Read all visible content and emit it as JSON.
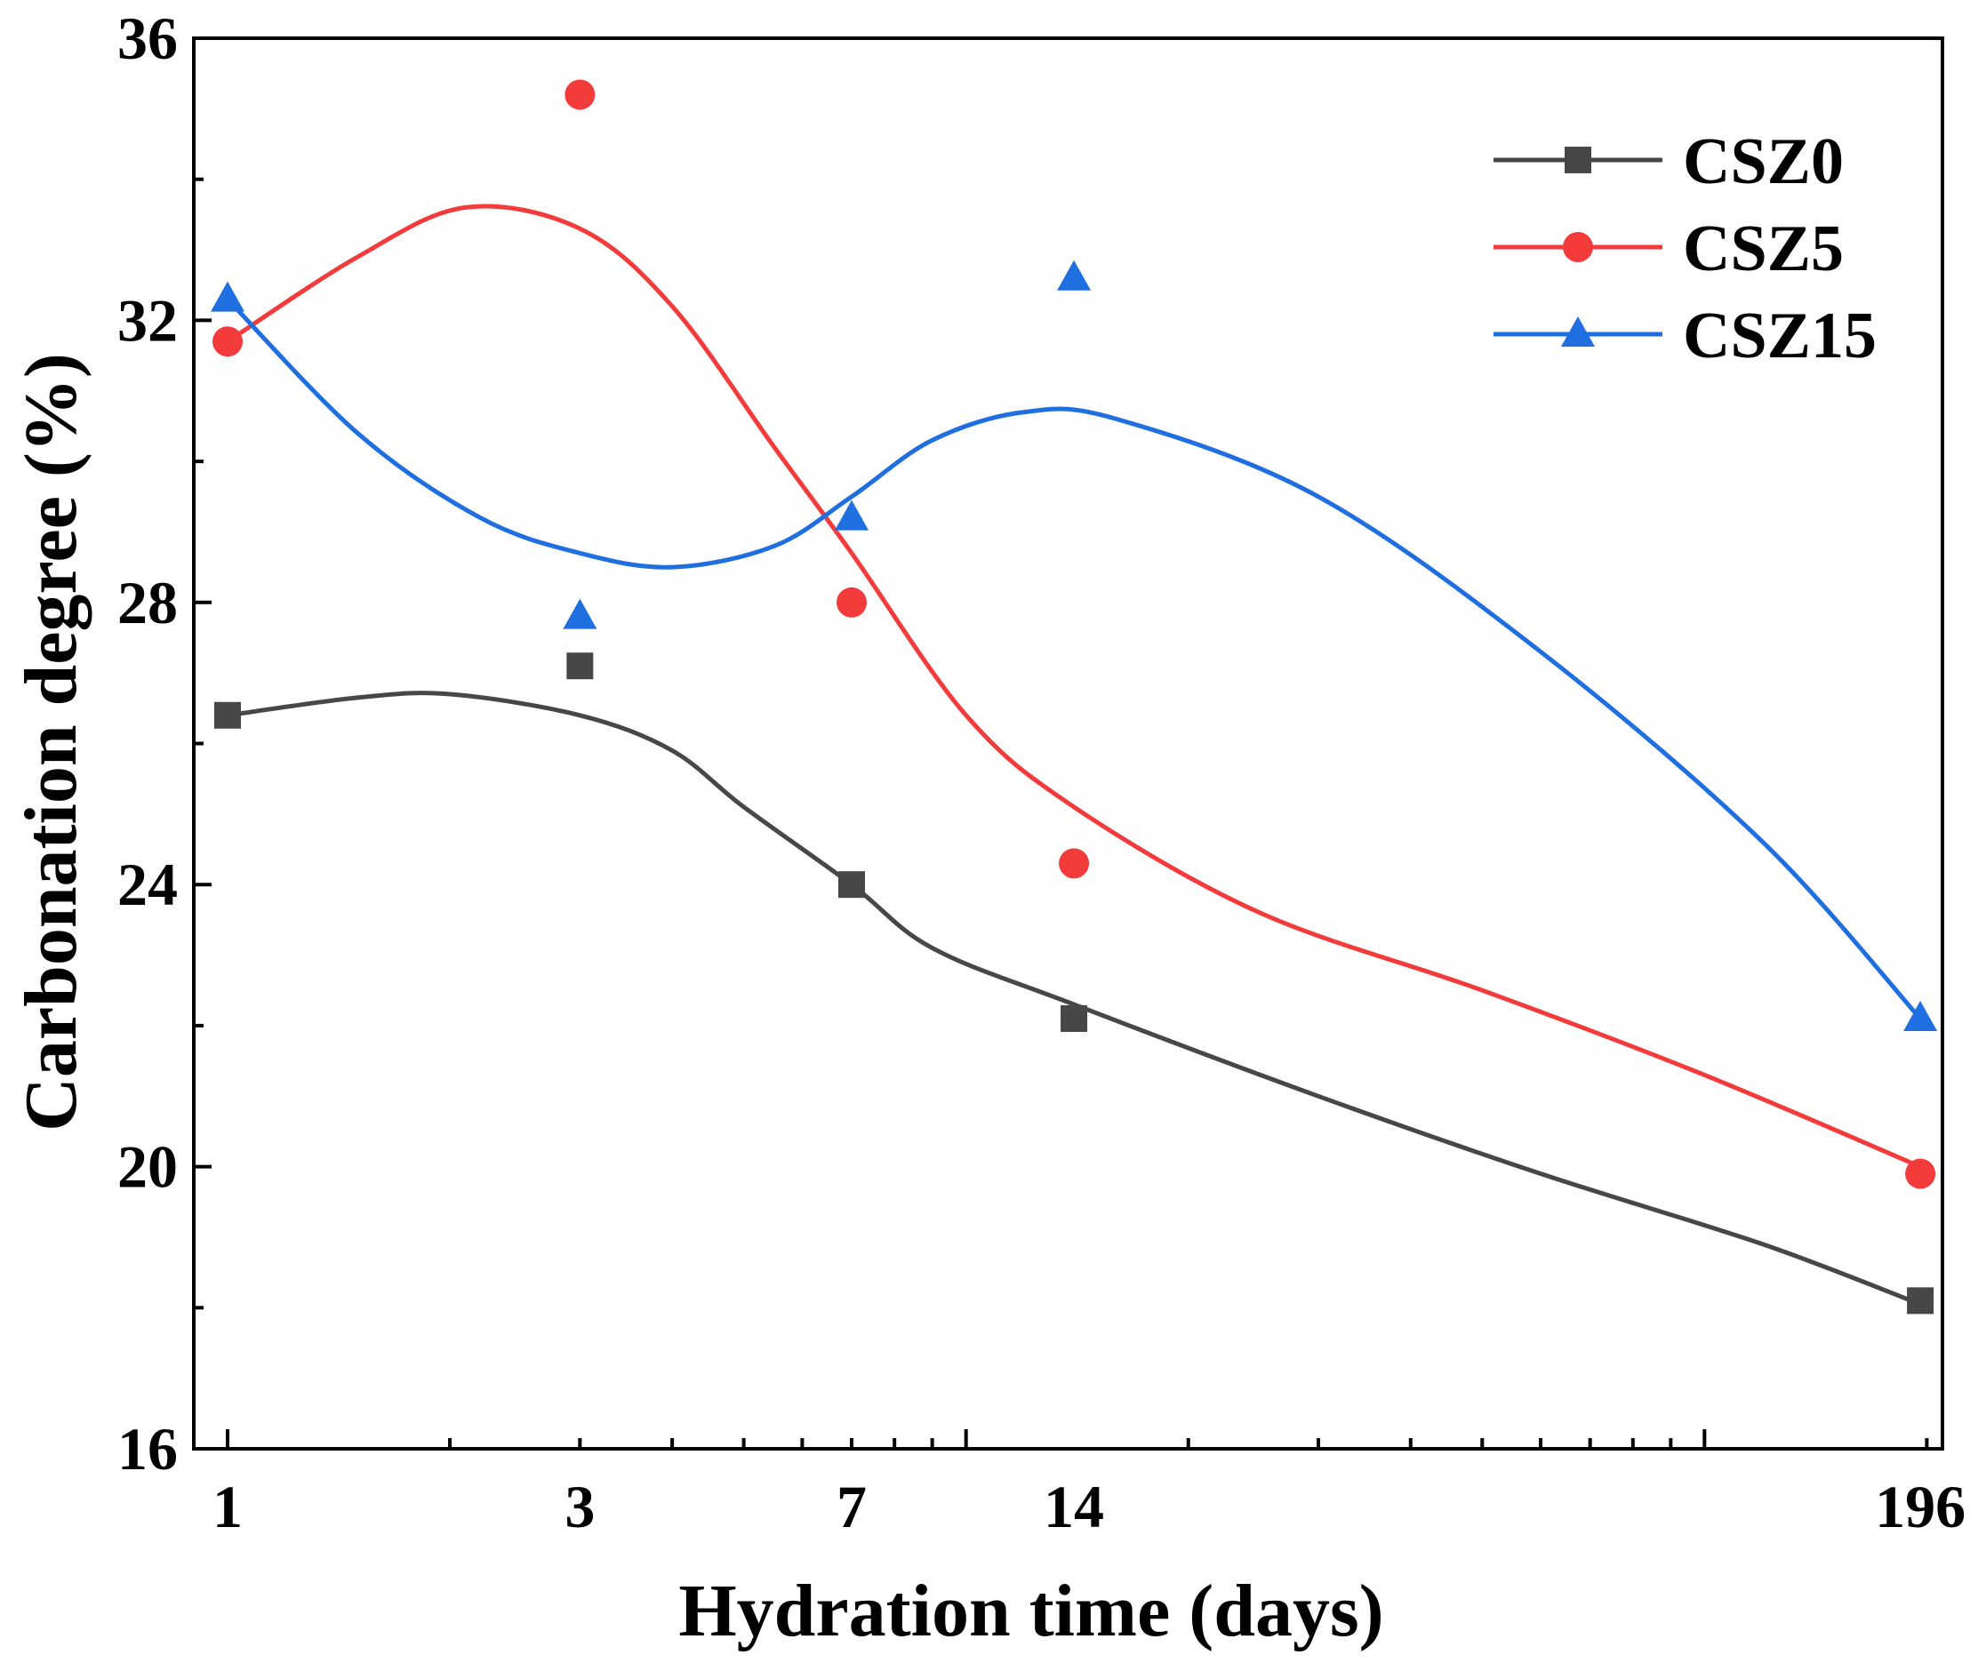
{
  "chart_data": {
    "type": "line",
    "title": "",
    "xlabel": "Hydration time (days)",
    "ylabel": "Carbonation degree (%)",
    "x_scale": "log",
    "x": [
      1,
      3,
      7,
      14,
      196
    ],
    "x_tick_labels": [
      "1",
      "3",
      "7",
      "14",
      "196"
    ],
    "xlim": [
      0.9,
      210
    ],
    "ylim": [
      16,
      36
    ],
    "y_ticks": [
      16,
      20,
      24,
      28,
      32,
      36
    ],
    "y_tick_labels": [
      "16",
      "20",
      "24",
      "28",
      "32",
      "36"
    ],
    "legend_position": "top-right",
    "series": [
      {
        "name": "CSZ0",
        "color": "#474747",
        "marker": "square",
        "values": [
          26.4,
          27.1,
          24.0,
          22.1,
          18.1
        ],
        "fit": [
          [
            1,
            26.4
          ],
          [
            1.5,
            26.65
          ],
          [
            2,
            26.7
          ],
          [
            3,
            26.4
          ],
          [
            4,
            25.9
          ],
          [
            5,
            25.1
          ],
          [
            7,
            24.0
          ],
          [
            9,
            23.1
          ],
          [
            14,
            22.3
          ],
          [
            30,
            21.0
          ],
          [
            60,
            19.9
          ],
          [
            120,
            18.9
          ],
          [
            196,
            18.05
          ]
        ]
      },
      {
        "name": "CSZ5",
        "color": "#f33b3b",
        "marker": "circle",
        "values": [
          31.7,
          35.2,
          28.0,
          24.3,
          19.9
        ],
        "fit": [
          [
            1,
            31.7
          ],
          [
            1.5,
            32.9
          ],
          [
            2.1,
            33.6
          ],
          [
            3,
            33.3
          ],
          [
            4,
            32.2
          ],
          [
            5.5,
            30.2
          ],
          [
            7,
            28.7
          ],
          [
            10,
            26.4
          ],
          [
            14,
            25.1
          ],
          [
            25,
            23.6
          ],
          [
            50,
            22.5
          ],
          [
            100,
            21.3
          ],
          [
            196,
            20.0
          ]
        ]
      },
      {
        "name": "CSZ15",
        "color": "#1f6fe0",
        "marker": "triangle",
        "values": [
          32.3,
          27.8,
          29.2,
          32.6,
          22.1
        ],
        "fit": [
          [
            1,
            32.3
          ],
          [
            1.5,
            30.4
          ],
          [
            2.2,
            29.2
          ],
          [
            3,
            28.7
          ],
          [
            4,
            28.5
          ],
          [
            5.5,
            28.8
          ],
          [
            7,
            29.5
          ],
          [
            9,
            30.3
          ],
          [
            12,
            30.7
          ],
          [
            16,
            30.6
          ],
          [
            30,
            29.5
          ],
          [
            60,
            27.3
          ],
          [
            120,
            24.6
          ],
          [
            196,
            22.1
          ]
        ]
      }
    ]
  }
}
